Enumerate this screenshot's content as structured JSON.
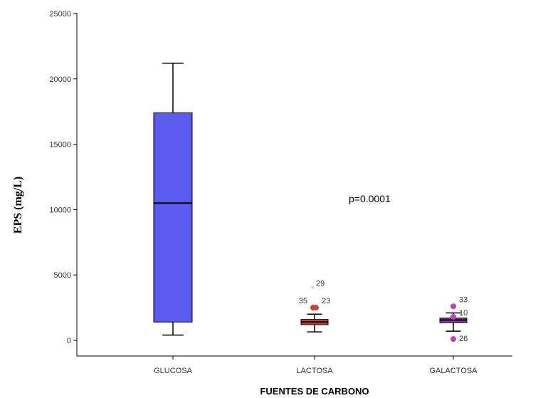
{
  "chart_data": {
    "type": "boxplot",
    "xlabel": "FUENTES DE CARBONO",
    "ylabel": "EPS (mg/L)",
    "ylim": [
      -1000,
      25000
    ],
    "yticks": [
      0,
      5000,
      10000,
      15000,
      20000,
      25000
    ],
    "ytick_labels": [
      "0",
      "5000",
      "10000",
      "15000",
      "20000",
      "25000"
    ],
    "annotation": "p=0.0001",
    "categories": [
      "GLUCOSA",
      "LACTOSA",
      "GALACTOSA"
    ],
    "boxes": [
      {
        "category": "GLUCOSA",
        "whisker_low": 400,
        "q1": 1400,
        "median": 10500,
        "q3": 17400,
        "whisker_high": 21200,
        "color": "#5b5bef"
      },
      {
        "category": "LACTOSA",
        "whisker_low": 650,
        "q1": 1200,
        "median": 1400,
        "q3": 1600,
        "whisker_high": 2000,
        "color": "#c8423c"
      },
      {
        "category": "GALACTOSA",
        "whisker_low": 700,
        "q1": 1350,
        "median": 1550,
        "q3": 1700,
        "whisker_high": 2100,
        "color": "#9b2fb0"
      }
    ],
    "outliers": [
      {
        "category": "LACTOSA",
        "value": 4000,
        "label": "29",
        "symbol": "star",
        "color": "#f08cb4"
      },
      {
        "category": "LACTOSA",
        "value": 2500,
        "label": "35",
        "symbol": "circle",
        "color": "#c8423c"
      },
      {
        "category": "LACTOSA",
        "value": 2500,
        "label": "23",
        "symbol": "circle",
        "color": "#c8423c"
      },
      {
        "category": "GALACTOSA",
        "value": 2600,
        "label": "33",
        "symbol": "circle",
        "color": "#c040c0"
      },
      {
        "category": "GALACTOSA",
        "value": 1800,
        "label": "10",
        "symbol": "circle",
        "color": "#c040c0"
      },
      {
        "category": "GALACTOSA",
        "value": 100,
        "label": "26",
        "symbol": "circle",
        "color": "#c040c0"
      }
    ]
  }
}
